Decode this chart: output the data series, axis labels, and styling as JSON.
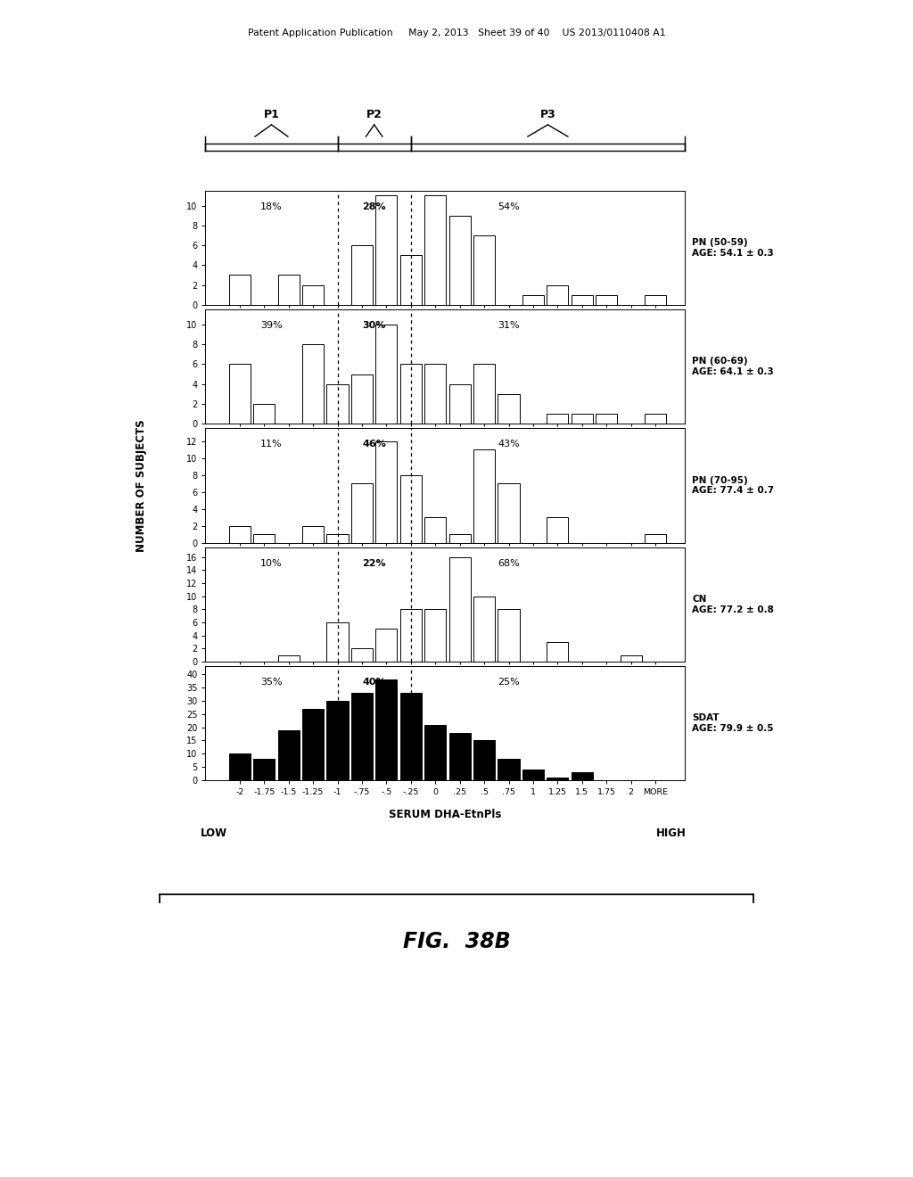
{
  "x_labels": [
    "-2",
    "-1.75",
    "-1.5",
    "-1.25",
    "-1",
    "-.75",
    "-.5",
    "-.25",
    "0",
    ".25",
    ".5",
    ".75",
    "1",
    "1.25",
    "1.5",
    "1.75",
    "2",
    "MORE"
  ],
  "x_positions": [
    -2.0,
    -1.75,
    -1.5,
    -1.25,
    -1.0,
    -0.75,
    -0.5,
    -0.25,
    0.0,
    0.25,
    0.5,
    0.75,
    1.0,
    1.25,
    1.5,
    1.75,
    2.0,
    2.25
  ],
  "bar_width": 0.22,
  "p1_boundary": -1.0,
  "p2_boundary": -0.25,
  "xlim_left": -2.35,
  "xlim_right": 2.55,
  "panels": [
    {
      "label": "PN (50-59)\nAGE: 54.1 ± 0.3",
      "pct_p1": "18%",
      "pct_p2": "28%",
      "pct_p3": "54%",
      "yticks": [
        0,
        2,
        4,
        6,
        8,
        10
      ],
      "ymax": 11.5,
      "color": "white",
      "edgecolor": "black",
      "values": [
        3,
        0,
        3,
        2,
        0,
        6,
        11,
        5,
        11,
        9,
        7,
        0,
        1,
        2,
        1,
        1,
        0,
        1
      ]
    },
    {
      "label": "PN (60-69)\nAGE: 64.1 ± 0.3",
      "pct_p1": "39%",
      "pct_p2": "30%",
      "pct_p3": "31%",
      "yticks": [
        0,
        2,
        4,
        6,
        8,
        10
      ],
      "ymax": 11.5,
      "color": "white",
      "edgecolor": "black",
      "values": [
        6,
        2,
        0,
        8,
        4,
        5,
        10,
        6,
        6,
        4,
        6,
        3,
        0,
        1,
        1,
        1,
        0,
        1
      ]
    },
    {
      "label": "PN (70-95)\nAGE: 77.4 ± 0.7",
      "pct_p1": "11%",
      "pct_p2": "46%",
      "pct_p3": "43%",
      "yticks": [
        0,
        2,
        4,
        6,
        8,
        10,
        12
      ],
      "ymax": 13.5,
      "color": "white",
      "edgecolor": "black",
      "values": [
        2,
        1,
        0,
        2,
        1,
        7,
        12,
        8,
        3,
        1,
        11,
        7,
        0,
        3,
        0,
        0,
        0,
        1
      ]
    },
    {
      "label": "CN\nAGE: 77.2 ± 0.8",
      "pct_p1": "10%",
      "pct_p2": "22%",
      "pct_p3": "68%",
      "yticks": [
        0,
        2,
        4,
        6,
        8,
        10,
        12,
        14,
        16
      ],
      "ymax": 17.5,
      "color": "white",
      "edgecolor": "black",
      "values": [
        0,
        0,
        1,
        0,
        6,
        2,
        5,
        8,
        8,
        16,
        10,
        8,
        0,
        3,
        0,
        0,
        1,
        0
      ]
    },
    {
      "label": "SDAT\nAGE: 79.9 ± 0.5",
      "pct_p1": "35%",
      "pct_p2": "40%",
      "pct_p3": "25%",
      "yticks": [
        0,
        5,
        10,
        15,
        20,
        25,
        30,
        35,
        40
      ],
      "ymax": 43,
      "color": "black",
      "edgecolor": "black",
      "values": [
        10,
        8,
        19,
        27,
        30,
        33,
        38,
        33,
        21,
        18,
        15,
        8,
        4,
        1,
        3,
        0,
        0,
        0
      ]
    }
  ],
  "ylabel": "NUMBER OF SUBJECTS",
  "xlabel": "SERUM DHA-EtnPls",
  "low_label": "LOW",
  "high_label": "HIGH",
  "fig_label": "FIG.  38B",
  "header": "Patent Application Publication     May 2, 2013   Sheet 39 of 40    US 2013/0110408 A1"
}
